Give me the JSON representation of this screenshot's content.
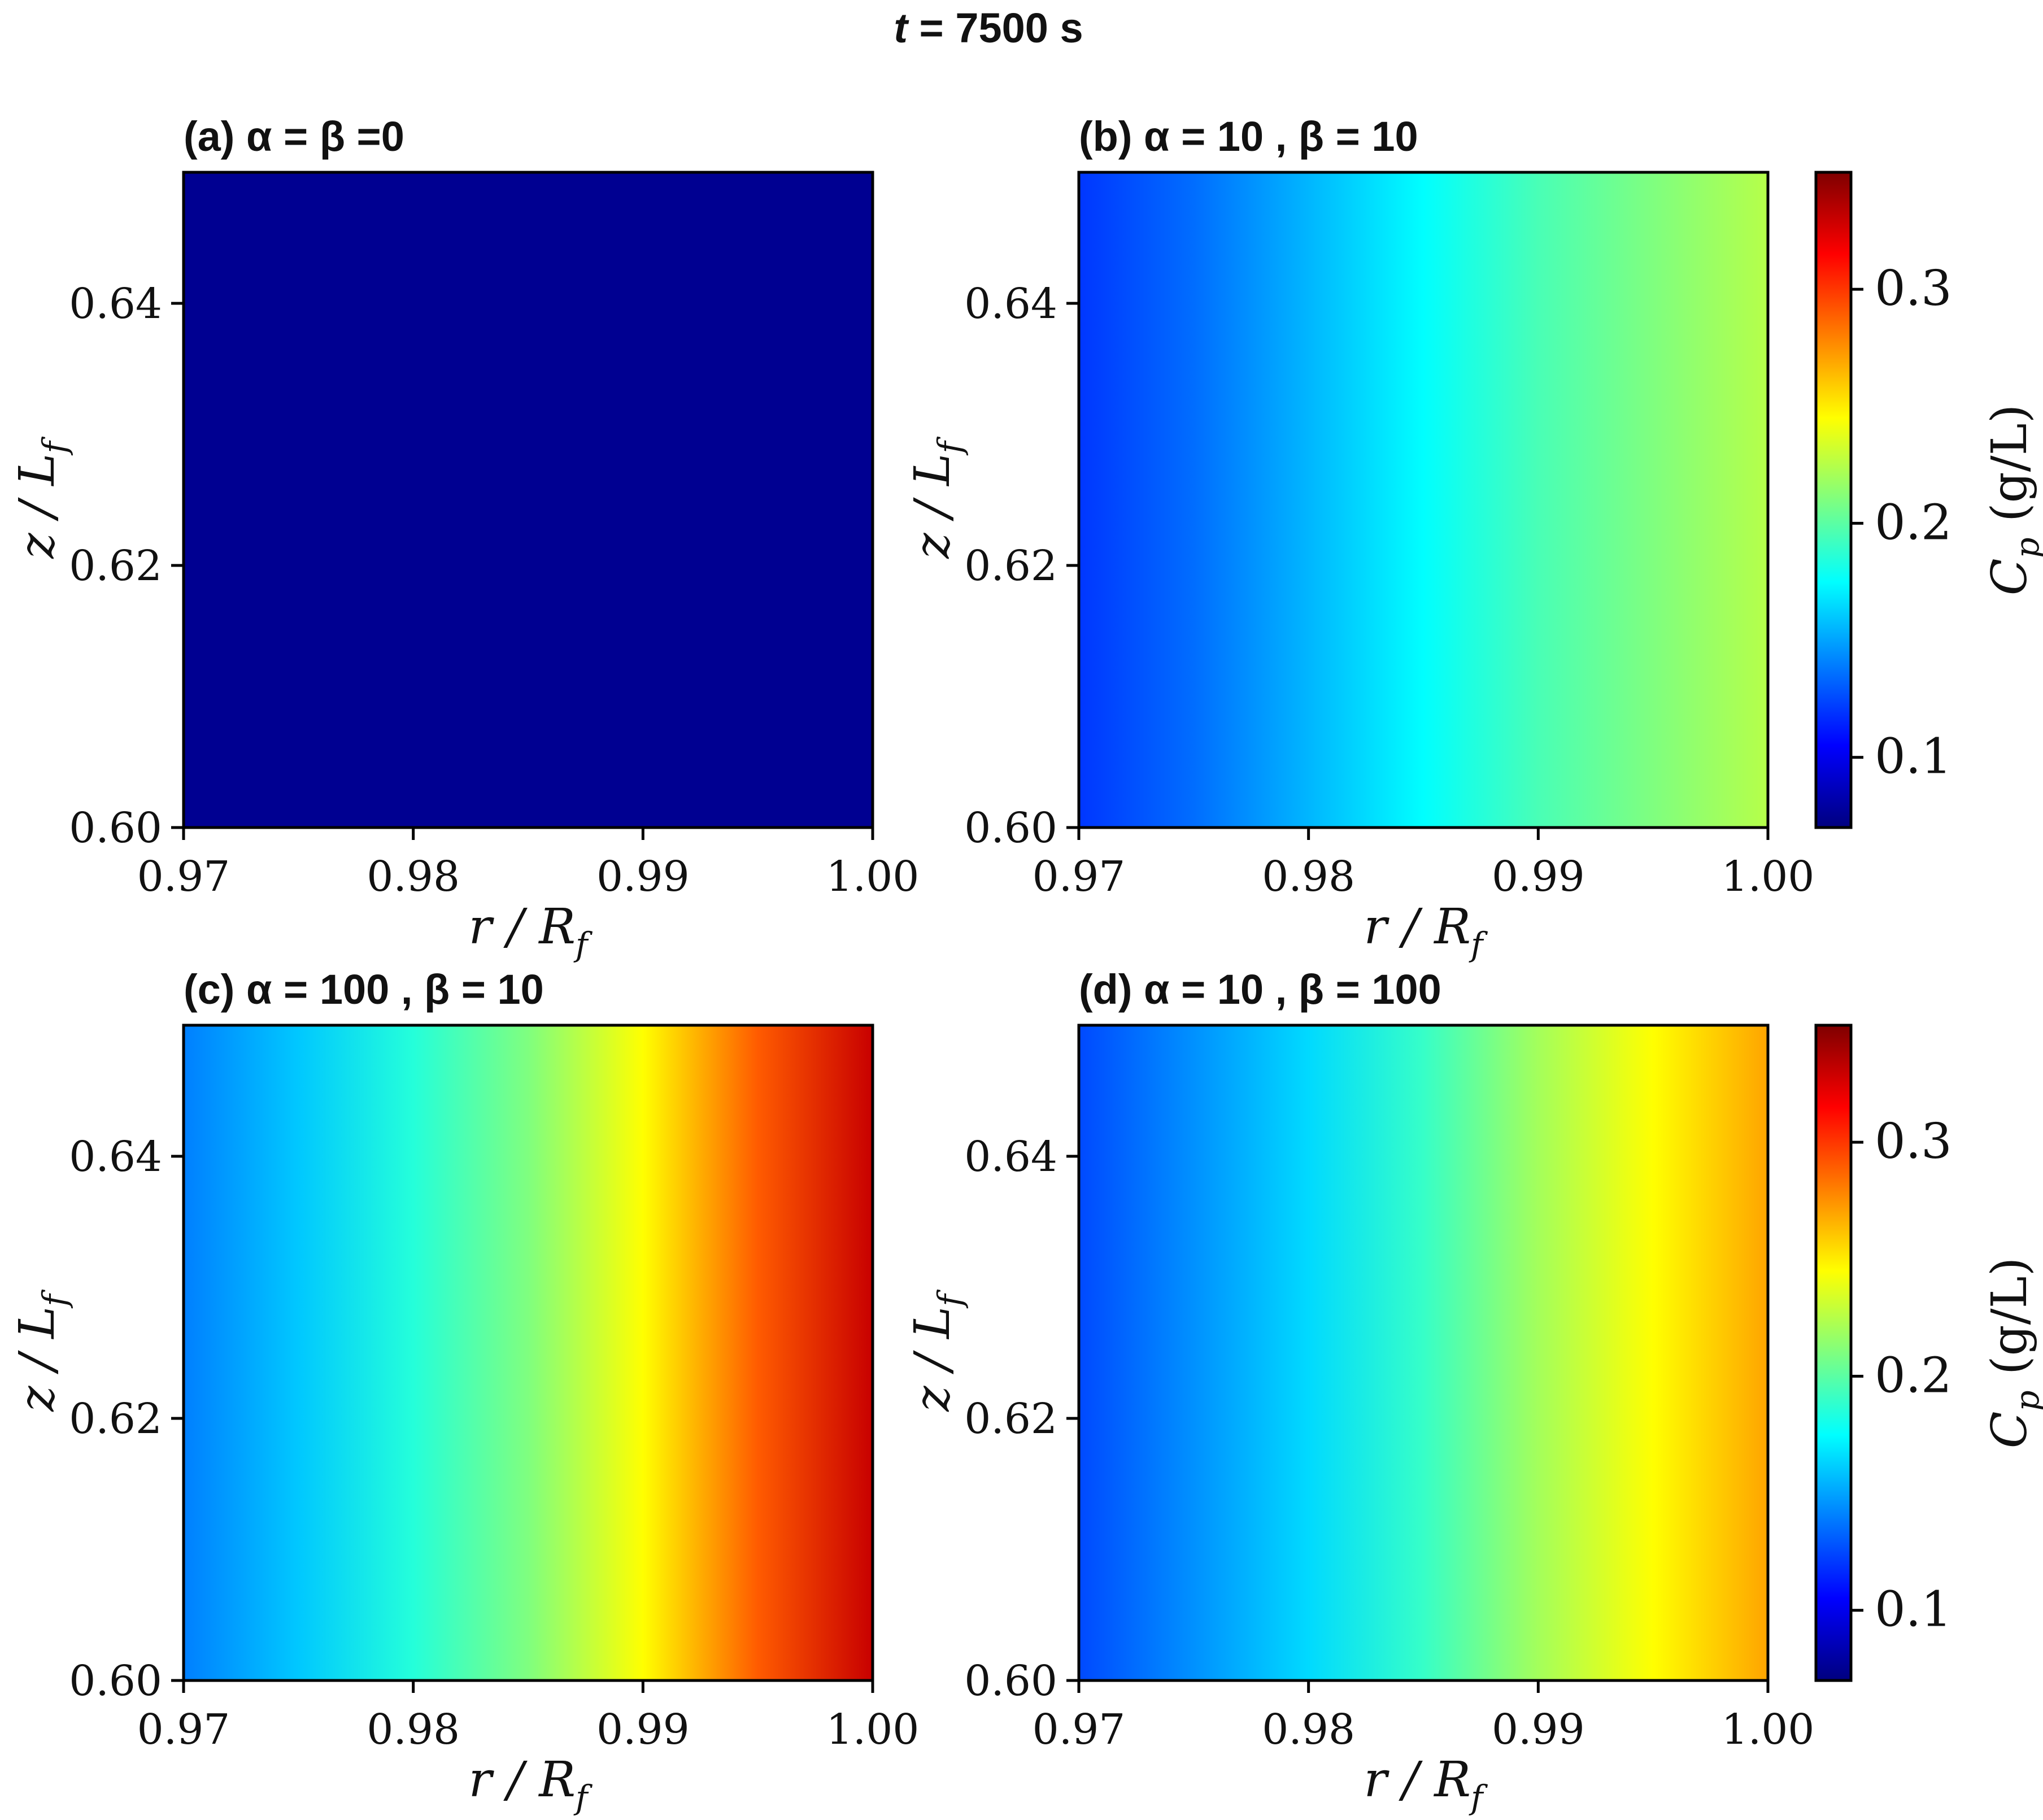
{
  "figure": {
    "suptitle": "t = 7500 s",
    "suptitle_var": "t",
    "suptitle_rest": " = 7500 s"
  },
  "colormap": {
    "name": "jet",
    "stops": [
      "#00007f",
      "#0000ff",
      "#007fff",
      "#00ffff",
      "#7fff7f",
      "#ffff00",
      "#ff7f00",
      "#ff0000",
      "#7f0000"
    ]
  },
  "colorbar": {
    "label": "C_p (g/L)",
    "label_main": "C",
    "label_sub": "p",
    "label_unit": " (g/L)",
    "vmin": 0.07,
    "vmax": 0.35,
    "ticks": [
      0.1,
      0.2,
      0.3
    ],
    "tick_labels": [
      "0.1",
      "0.2",
      "0.3"
    ]
  },
  "chart_data": [
    {
      "type": "heatmap",
      "title": "(a) α = β =0",
      "xlabel": "r / R_f",
      "ylabel": "z / L_f",
      "xlim": [
        0.97,
        1.0
      ],
      "ylim": [
        0.6,
        0.65
      ],
      "xticks": [
        "0.97",
        "0.98",
        "0.99",
        "1.00"
      ],
      "yticks": [
        "0.60",
        "0.62",
        "0.64"
      ],
      "x": [
        0.97,
        1.0
      ],
      "values": [
        0.075,
        0.075
      ]
    },
    {
      "type": "heatmap",
      "title": "(b) α = 10 ,  β = 10",
      "xlabel": "r / R_f",
      "ylabel": "z / L_f",
      "xlim": [
        0.97,
        1.0
      ],
      "ylim": [
        0.6,
        0.65
      ],
      "xticks": [
        "0.97",
        "0.98",
        "0.99",
        "1.00"
      ],
      "yticks": [
        "0.60",
        "0.62",
        "0.64"
      ],
      "x": [
        0.97,
        0.975,
        0.98,
        0.985,
        0.99,
        0.995,
        1.0
      ],
      "values": [
        0.12,
        0.135,
        0.155,
        0.175,
        0.195,
        0.21,
        0.225
      ]
    },
    {
      "type": "heatmap",
      "title": "(c) α = 100 ,  β = 10",
      "xlabel": "r / R_f",
      "ylabel": "z / L_f",
      "xlim": [
        0.97,
        1.0
      ],
      "ylim": [
        0.6,
        0.65
      ],
      "xticks": [
        "0.97",
        "0.98",
        "0.99",
        "1.00"
      ],
      "yticks": [
        "0.60",
        "0.62",
        "0.64"
      ],
      "x": [
        0.97,
        0.975,
        0.98,
        0.985,
        0.99,
        0.995,
        1.0
      ],
      "values": [
        0.14,
        0.16,
        0.185,
        0.21,
        0.245,
        0.29,
        0.33
      ]
    },
    {
      "type": "heatmap",
      "title": "(d) α = 10 ,  β = 100",
      "xlabel": "r / R_f",
      "ylabel": "z / L_f",
      "xlim": [
        0.97,
        1.0
      ],
      "ylim": [
        0.6,
        0.65
      ],
      "xticks": [
        "0.97",
        "0.98",
        "0.99",
        "1.00"
      ],
      "yticks": [
        "0.60",
        "0.62",
        "0.64"
      ],
      "x": [
        0.97,
        0.975,
        0.98,
        0.985,
        0.99,
        0.995,
        1.0
      ],
      "values": [
        0.125,
        0.145,
        0.165,
        0.19,
        0.22,
        0.245,
        0.27
      ]
    }
  ]
}
